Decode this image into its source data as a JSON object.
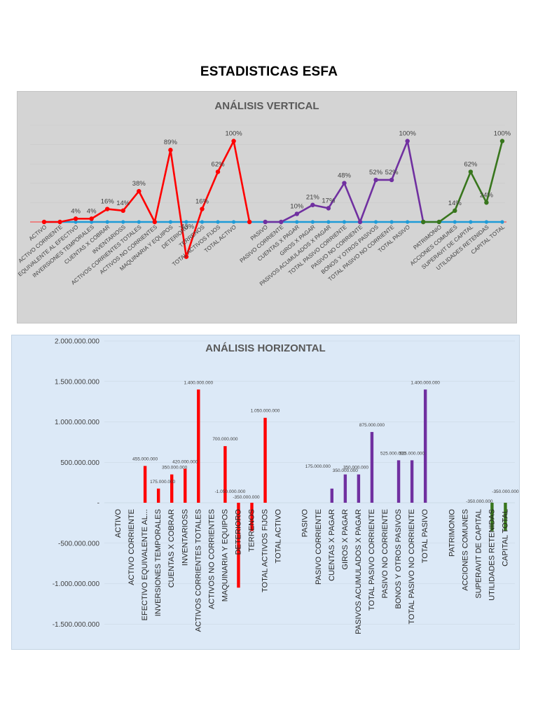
{
  "page": {
    "title": "ESTADISTICAS ESFA"
  },
  "colors": {
    "activo": "#ff0000",
    "pasivo": "#7030a0",
    "patrimonio": "#38761d",
    "baseline": "#1e9bd7"
  },
  "chart_data": [
    {
      "type": "line",
      "title": "ANÁLISIS VERTICAL",
      "categories": [
        "ACTIVO",
        "ACTIVO CORRIENTE",
        "EQUIVALENTE AL EFECTIVO",
        "INVERSIONES TEMPORALES",
        "CUENTAS X COBRAR",
        "INVENTARIOSS",
        "ACTIVOS CORRIENTES TOTALES",
        "ACTIVOS NO CORRIENTES",
        "MAQUINARIA Y EQUIPOS",
        "DETERIORO",
        "TERRENOS",
        "TOTAL ACTIVOS FIJOS",
        "TOTAL ACTIVO",
        "",
        "PASIVO",
        "PASIVO CORRIENTE",
        "CUENTAS X PAGAR",
        "GIROS X PAGAR",
        "PASIVOS ACUMULADOS X PAGAR",
        "TOTAL PASIVO CORRIENTE",
        "PASIVO NO CORRIENTE",
        "BONOS Y OTROS PASIVOS",
        "TOTAL PASIVO NO CORRIENTE",
        "TOTAL PASIVO",
        "",
        "PATRIMONIO",
        "ACCIONES COMUNES",
        "SUPERAVIT DE CAPITAL",
        "UTILIDADES RETENIDAS",
        "CAPITAL TOTAL"
      ],
      "series": [
        {
          "color": "#ff0000",
          "values": [
            0,
            0,
            4,
            4,
            16,
            14,
            38,
            0,
            89,
            -43,
            16,
            62,
            100,
            0,
            null,
            null,
            null,
            null,
            null,
            null,
            null,
            null,
            null,
            null,
            null,
            null,
            null,
            null,
            null,
            null
          ],
          "labels": [
            "",
            "",
            "4%",
            "4%",
            "16%",
            "14%",
            "38%",
            "",
            "89%",
            "-43%",
            "16%",
            "62%",
            "100%",
            "",
            "",
            "",
            "",
            "",
            "",
            "",
            "",
            "",
            "",
            "",
            "",
            "",
            "",
            "",
            "",
            ""
          ]
        },
        {
          "color": "#7030a0",
          "values": [
            null,
            null,
            null,
            null,
            null,
            null,
            null,
            null,
            null,
            null,
            null,
            null,
            null,
            null,
            0,
            0,
            10,
            21,
            17,
            48,
            0,
            52,
            52,
            100,
            0,
            null,
            null,
            null,
            null,
            null
          ],
          "labels": [
            "",
            "",
            "",
            "",
            "",
            "",
            "",
            "",
            "",
            "",
            "",
            "",
            "",
            "",
            "",
            "",
            "10%",
            "21%",
            "17%",
            "48%",
            "",
            "52%",
            "52%",
            "100%",
            "",
            "",
            "",
            "",
            "",
            ""
          ]
        },
        {
          "color": "#38761d",
          "values": [
            null,
            null,
            null,
            null,
            null,
            null,
            null,
            null,
            null,
            null,
            null,
            null,
            null,
            null,
            null,
            null,
            null,
            null,
            null,
            null,
            null,
            null,
            null,
            null,
            0,
            0,
            14,
            62,
            24,
            100
          ],
          "labels": [
            "",
            "",
            "",
            "",
            "",
            "",
            "",
            "",
            "",
            "",
            "",
            "",
            "",
            "",
            "",
            "",
            "",
            "",
            "",
            "",
            "",
            "",
            "",
            "",
            "",
            "",
            "14%",
            "62%",
            "24%",
            "100%"
          ]
        }
      ]
    },
    {
      "type": "bar",
      "title": "ANÁLISIS HORIZONTAL",
      "ylim": [
        -1500000000,
        2000000000
      ],
      "yticks": [
        {
          "v": 2000000000,
          "label": "2.000.000.000"
        },
        {
          "v": 1500000000,
          "label": "1.500.000.000"
        },
        {
          "v": 1000000000,
          "label": "1.000.000.000"
        },
        {
          "v": 500000000,
          "label": "500.000.000"
        },
        {
          "v": 0,
          "label": "-"
        },
        {
          "v": -500000000,
          "label": "-500.000.000"
        },
        {
          "v": -1000000000,
          "label": "-1.000.000.000"
        },
        {
          "v": -1500000000,
          "label": "-1.500.000.000"
        }
      ],
      "categories": [
        "ACTIVO",
        "ACTIVO CORRIENTE",
        "EFECTIVO EQUIVALENTE AL...",
        "INVERSIONES TEMPORALES",
        "CUENTAS X COBRAR",
        "INVENTARIOSS",
        "ACTIVOS CORRIENTES TOTALES",
        "ACTIVOS NO CORRIENTES",
        "MAQUINARIA  Y EQUIPOS",
        "DETERIORO",
        "TERRENOS",
        "TOTAL ACTIVOS FIJOS",
        "TOTAL ACTIVO",
        "",
        "PASIVO",
        "PASIVO CORRIENTE",
        "CUENTAS X PAGAR",
        "GIROS X PAGAR",
        "PASIVOS ACUMULADOS X PAGAR",
        "TOTAL PASIVO CORRIENTE",
        "PASIVO NO CORRIENTE",
        "BONOS  Y OTROS PASIVOS",
        "TOTAL PASIVO NO CORRIENTE",
        "TOTAL PASIVO",
        "",
        "PATRIMONIO",
        "ACCIONES COMUNES",
        "SUPERAVIT DE CAPITAL",
        "UTILIDADES RETENIDAS",
        "CAPITAL TOTAL"
      ],
      "values": [
        null,
        null,
        455000000,
        175000000,
        350000000,
        420000000,
        1400000000,
        null,
        700000000,
        -1050000000,
        -350000000,
        1050000000,
        null,
        null,
        null,
        null,
        175000000,
        350000000,
        350000000,
        875000000,
        null,
        525000000,
        525000000,
        1400000000,
        null,
        null,
        null,
        null,
        -350000000,
        -350000000
      ],
      "bar_colors": [
        "#ff0000",
        "#ff0000",
        "#ff0000",
        "#ff0000",
        "#ff0000",
        "#ff0000",
        "#ff0000",
        "#ff0000",
        "#ff0000",
        "#ff0000",
        "#ff0000",
        "#ff0000",
        "#ff0000",
        "#ff0000",
        "#7030a0",
        "#7030a0",
        "#7030a0",
        "#7030a0",
        "#7030a0",
        "#7030a0",
        "#7030a0",
        "#7030a0",
        "#7030a0",
        "#7030a0",
        "#38761d",
        "#38761d",
        "#38761d",
        "#38761d",
        "#38761d",
        "#38761d"
      ],
      "labels": [
        "",
        "",
        "455.000.000",
        "175.000.000",
        "350.000.000",
        "420.000.000",
        "1.400.000.000",
        "",
        "700.000.000",
        "-1.050.000.000",
        "-350.000.000",
        "1.050.000.000",
        "",
        "",
        "",
        "",
        "175.000.000",
        "350.000.000",
        "350.000.000",
        "875.000.000",
        "",
        "525.000.000",
        "525.000.000",
        "1.400.000.000",
        "",
        "",
        "",
        "",
        "-350.000.000",
        "-350.000.000"
      ]
    }
  ]
}
